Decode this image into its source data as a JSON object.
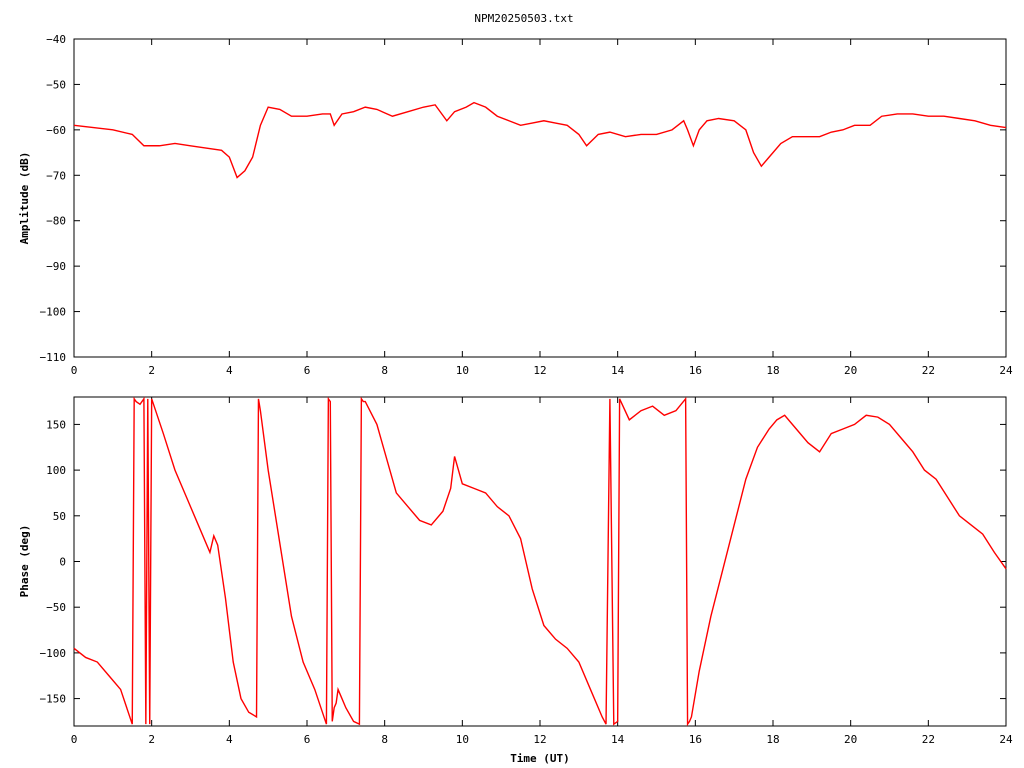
{
  "title": "NPM20250503.txt",
  "chart_data": [
    {
      "type": "line",
      "ylabel": "Amplitude (dB)",
      "xlabel": "",
      "xlim": [
        0,
        24
      ],
      "ylim": [
        -110,
        -40
      ],
      "xticks": [
        0,
        2,
        4,
        6,
        8,
        10,
        12,
        14,
        16,
        18,
        20,
        22,
        24
      ],
      "yticks": [
        -110,
        -100,
        -90,
        -80,
        -70,
        -60,
        -50,
        -40
      ],
      "grid": false,
      "color": "#ff0000",
      "series": [
        {
          "x": [
            0,
            0.5,
            1,
            1.5,
            1.8,
            2.2,
            2.6,
            3,
            3.4,
            3.8,
            4.0,
            4.2,
            4.4,
            4.6,
            4.8,
            5.0,
            5.3,
            5.6,
            6.0,
            6.4,
            6.6,
            6.7,
            6.9,
            7.2,
            7.5,
            7.8,
            8.2,
            8.6,
            9.0,
            9.3,
            9.6,
            9.8,
            10.1,
            10.3,
            10.6,
            10.9,
            11.2,
            11.5,
            11.8,
            12.1,
            12.4,
            12.7,
            13.0,
            13.2,
            13.5,
            13.8,
            14.2,
            14.6,
            15.0,
            15.4,
            15.7,
            15.8,
            15.95,
            16.1,
            16.3,
            16.6,
            17.0,
            17.3,
            17.5,
            17.7,
            17.9,
            18.2,
            18.5,
            18.8,
            19.2,
            19.5,
            19.8,
            20.1,
            20.5,
            20.8,
            21.2,
            21.6,
            22.0,
            22.4,
            22.8,
            23.2,
            23.6,
            24.0
          ],
          "y": [
            -59,
            -59.5,
            -60,
            -61,
            -63.5,
            -63.5,
            -63,
            -63.5,
            -64,
            -64.5,
            -66,
            -70.5,
            -69,
            -66,
            -59,
            -55,
            -55.5,
            -57,
            -57,
            -56.5,
            -56.5,
            -59,
            -56.5,
            -56,
            -55,
            -55.5,
            -57,
            -56,
            -55,
            -54.5,
            -58,
            -56,
            -55,
            -54,
            -55,
            -57,
            -58,
            -59,
            -58.5,
            -58,
            -58.5,
            -59,
            -61,
            -63.5,
            -61,
            -60.5,
            -61.5,
            -61,
            -61,
            -60,
            -58,
            -60,
            -63.5,
            -60,
            -58,
            -57.5,
            -58,
            -60,
            -65,
            -68,
            -66,
            -63,
            -61.5,
            -61.5,
            -61.5,
            -60.5,
            -60,
            -59,
            -59,
            -57,
            -56.5,
            -56.5,
            -57,
            -57,
            -57.5,
            -58,
            -59,
            -59.5
          ]
        }
      ]
    },
    {
      "type": "line",
      "ylabel": "Phase (deg)",
      "xlabel": "Time (UT)",
      "xlim": [
        0,
        24
      ],
      "ylim": [
        -180,
        180
      ],
      "xticks": [
        0,
        2,
        4,
        6,
        8,
        10,
        12,
        14,
        16,
        18,
        20,
        22,
        24
      ],
      "yticks": [
        -150,
        -100,
        -50,
        0,
        50,
        100,
        150
      ],
      "grid": false,
      "color": "#ff0000",
      "series": [
        {
          "x": [
            0,
            0.3,
            0.6,
            0.9,
            1.2,
            1.5,
            1.55,
            1.6,
            1.7,
            1.8,
            1.85,
            1.9,
            1.95,
            2.0,
            2.3,
            2.6,
            2.9,
            3.2,
            3.5,
            3.6,
            3.7,
            3.9,
            4.1,
            4.3,
            4.5,
            4.7,
            4.75,
            4.8,
            5.0,
            5.3,
            5.6,
            5.9,
            6.2,
            6.5,
            6.55,
            6.6,
            6.65,
            6.7,
            6.75,
            6.8,
            6.9,
            7.0,
            7.2,
            7.35,
            7.4,
            7.45,
            7.5,
            7.8,
            8.0,
            8.3,
            8.6,
            8.9,
            9.2,
            9.5,
            9.7,
            9.8,
            10.0,
            10.3,
            10.6,
            10.9,
            11.2,
            11.5,
            11.8,
            12.1,
            12.4,
            12.7,
            13.0,
            13.3,
            13.6,
            13.7,
            13.8,
            13.9,
            14.0,
            14.05,
            14.3,
            14.6,
            14.9,
            15.2,
            15.5,
            15.75,
            15.8,
            15.85,
            15.9,
            16.1,
            16.4,
            16.7,
            17.0,
            17.3,
            17.6,
            17.9,
            18.1,
            18.3,
            18.6,
            18.9,
            19.2,
            19.5,
            19.8,
            20.1,
            20.4,
            20.7,
            21.0,
            21.3,
            21.6,
            21.9,
            22.2,
            22.5,
            22.8,
            23.1,
            23.4,
            23.7,
            24.0
          ],
          "y": [
            -95,
            -105,
            -110,
            -125,
            -140,
            -178,
            178,
            175,
            172,
            178,
            -178,
            178,
            -178,
            178,
            140,
            100,
            70,
            40,
            10,
            28,
            18,
            -40,
            -110,
            -150,
            -165,
            -170,
            178,
            165,
            100,
            20,
            -60,
            -110,
            -140,
            -178,
            178,
            175,
            -175,
            -160,
            -155,
            -140,
            -150,
            -160,
            -175,
            -178,
            178,
            175,
            175,
            150,
            120,
            75,
            60,
            45,
            40,
            55,
            80,
            115,
            85,
            80,
            75,
            60,
            50,
            25,
            -30,
            -70,
            -85,
            -95,
            -110,
            -140,
            -170,
            -178,
            178,
            -178,
            -175,
            178,
            155,
            165,
            170,
            160,
            165,
            178,
            -178,
            -175,
            -170,
            -120,
            -60,
            -10,
            40,
            90,
            125,
            145,
            155,
            160,
            145,
            130,
            120,
            140,
            145,
            150,
            160,
            158,
            150,
            135,
            120,
            100,
            90,
            70,
            50,
            40,
            30,
            10,
            -8
          ]
        }
      ]
    }
  ]
}
